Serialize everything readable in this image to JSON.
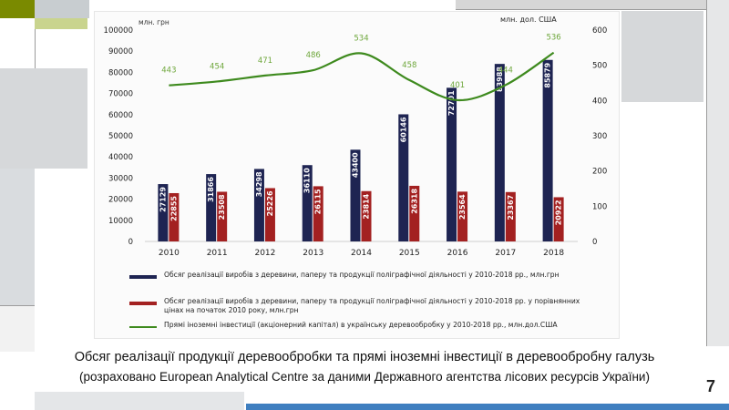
{
  "chart_data": {
    "type": "bar",
    "categories": [
      "2010",
      "2011",
      "2012",
      "2013",
      "2014",
      "2015",
      "2016",
      "2017",
      "2018"
    ],
    "left_axis": {
      "unit": "млн. грн",
      "ticks": [
        "0",
        "10000",
        "20000",
        "30000",
        "40000",
        "50000",
        "60000",
        "70000",
        "80000",
        "90000",
        "100000"
      ],
      "ylim": [
        0,
        100000
      ]
    },
    "right_axis": {
      "unit": "млн. дол. США",
      "ticks": [
        "0",
        "100",
        "200",
        "300",
        "400",
        "500",
        "600"
      ],
      "ylim": [
        0,
        600
      ]
    },
    "series": [
      {
        "name": "Обсяг реалізації виробів з деревини, паперу та продукції поліграфічної діяльності у 2010-2018 рр., млн.грн",
        "kind": "bar",
        "color": "#1e2452",
        "values": [
          27129,
          31866,
          34298,
          36110,
          43400,
          60146,
          72701,
          83988,
          85879
        ]
      },
      {
        "name": "Обсяг реалізації виробів з деревини, паперу та продукції поліграфічної діяльності у 2010-2018 рр. у порівнянних цінах на початок 2010 року, млн.грн",
        "kind": "bar",
        "color": "#a32121",
        "values": [
          22855,
          23508,
          25226,
          26115,
          23814,
          26318,
          23564,
          23367,
          20922
        ]
      },
      {
        "name": "Прямі іноземні інвестиції (акціонерний капітал) в українську деревообробку у 2010-2018 рр., млн.дол.США",
        "kind": "line",
        "axis": "right",
        "color": "#3e8a1e",
        "values": [
          443,
          454,
          471,
          486,
          534,
          458,
          401,
          444,
          536
        ]
      }
    ],
    "grid": false,
    "legend_position": "bottom"
  },
  "caption": "Обсяг реалізації продукції деревообробки та прямі іноземні інвестиції в деревообробну галузь",
  "source": "(розраховано European Analytical Centre за даними Державного агентства лісових ресурсів України)",
  "page_number": "7"
}
